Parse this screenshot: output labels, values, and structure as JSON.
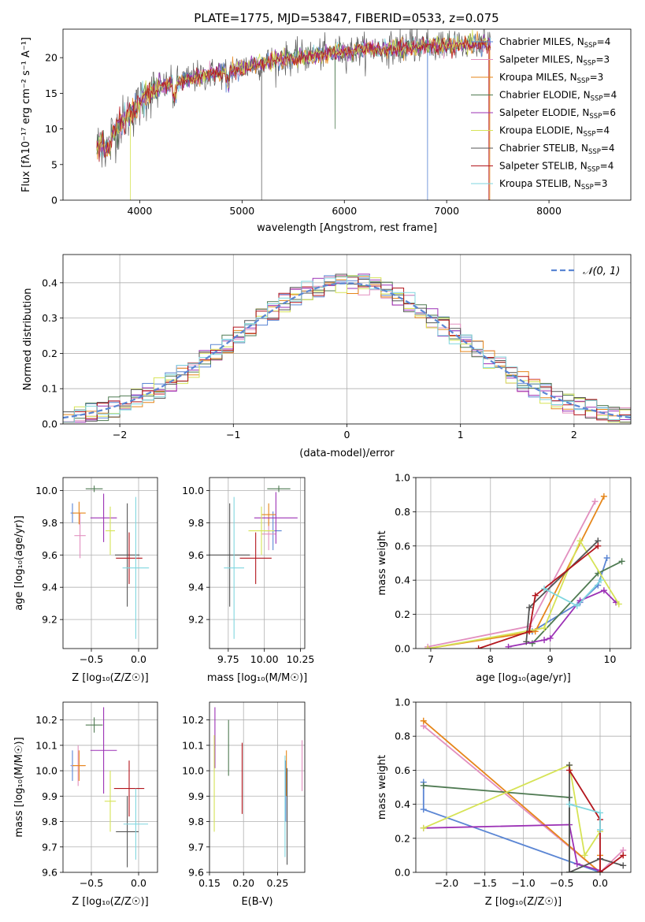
{
  "chart_data": [
    {
      "id": "spectrum",
      "type": "line",
      "title": "PLATE=1775, MJD=53847, FIBERID=0533, z=0.075",
      "xlabel": "wavelength [Angstrom, rest frame]",
      "ylabel": "Flux [fλ10⁻¹⁷ erg cm⁻² s⁻¹ A⁻¹]",
      "xlim": [
        3250,
        8800
      ],
      "ylim": [
        0,
        24
      ],
      "xticks": [
        4000,
        5000,
        6000,
        7000,
        8000
      ],
      "yticks": [
        0,
        5,
        10,
        15,
        20
      ],
      "grid": false,
      "legend_position": "top-right",
      "continuum": {
        "x": [
          3580,
          3650,
          3750,
          3850,
          3950,
          4050,
          4150,
          4250,
          4400,
          4600,
          4800,
          5000,
          5200,
          5400,
          5600,
          5800,
          6000,
          6200,
          6400,
          6600,
          6800,
          7000,
          7200,
          7400
        ],
        "y": [
          7.5,
          8.5,
          9.5,
          11.5,
          12.5,
          14.5,
          15.5,
          16.0,
          16.7,
          17.4,
          18.0,
          18.6,
          19.3,
          19.8,
          20.1,
          20.5,
          20.9,
          21.1,
          21.3,
          21.4,
          21.6,
          21.7,
          21.8,
          21.9
        ]
      },
      "series": [
        {
          "name": "Chabrier MILES, N",
          "sub": "SSP",
          "suffix": "=4",
          "color": "#5b86d4"
        },
        {
          "name": "Salpeter MILES, N",
          "sub": "SSP",
          "suffix": "=3",
          "color": "#e28fbf"
        },
        {
          "name": "Kroupa MILES, N",
          "sub": "SSP",
          "suffix": "=3",
          "color": "#e6861a"
        },
        {
          "name": "Chabrier ELODIE, N",
          "sub": "SSP",
          "suffix": "=4",
          "color": "#4f7a52"
        },
        {
          "name": "Salpeter ELODIE, N",
          "sub": "SSP",
          "suffix": "=6",
          "color": "#9b30b5"
        },
        {
          "name": "Kroupa ELODIE, N",
          "sub": "SSP",
          "suffix": "=4",
          "color": "#d6e356"
        },
        {
          "name": "Chabrier STELIB, N",
          "sub": "SSP",
          "suffix": "=4",
          "color": "#555555"
        },
        {
          "name": "Salpeter STELIB, N",
          "sub": "SSP",
          "suffix": "=4",
          "color": "#b3151c"
        },
        {
          "name": "Kroupa STELIB, N",
          "sub": "SSP",
          "suffix": "=3",
          "color": "#7fd6df"
        }
      ]
    },
    {
      "id": "residuals",
      "type": "line",
      "xlabel": "(data-model)/error",
      "ylabel": "Normed distribution",
      "xlim": [
        -2.5,
        2.5
      ],
      "ylim": [
        0,
        0.48
      ],
      "xticks": [
        -2,
        -1,
        0,
        1,
        2
      ],
      "yticks": [
        0.0,
        0.1,
        0.2,
        0.3,
        0.4
      ],
      "grid": true,
      "legend_position": "top-right",
      "gaussian_label": "𝒩(0, 1)",
      "gaussian_color": "#5b86d4",
      "bin_width": 0.1
    },
    {
      "id": "age-vs-Z",
      "type": "scatter",
      "xlabel": "Z [log₁₀(Z/Z☉)]",
      "ylabel": "age  [log₁₀(age/yr)]",
      "xlim": [
        -0.8,
        0.2
      ],
      "ylim": [
        9.02,
        10.08
      ],
      "xticks": [
        -0.5,
        0.0
      ],
      "yticks": [
        9.2,
        9.4,
        9.6,
        9.8,
        10.0
      ],
      "grid": true,
      "errorbars": [
        {
          "x": -0.7,
          "y": 9.86,
          "xerr": 0.02,
          "yerr": 0.06,
          "color": "#5b86d4"
        },
        {
          "x": -0.62,
          "y": 9.72,
          "xerr": 0.06,
          "yerr": 0.14,
          "color": "#e28fbf"
        },
        {
          "x": -0.63,
          "y": 9.86,
          "xerr": 0.07,
          "yerr": 0.07,
          "color": "#e6861a"
        },
        {
          "x": -0.47,
          "y": 10.01,
          "xerr": 0.09,
          "yerr": 0.02,
          "color": "#4f7a52"
        },
        {
          "x": -0.37,
          "y": 9.83,
          "xerr": 0.14,
          "yerr": 0.15,
          "color": "#9b30b5"
        },
        {
          "x": -0.3,
          "y": 9.75,
          "xerr": 0.05,
          "yerr": 0.15,
          "color": "#d6e356"
        },
        {
          "x": -0.12,
          "y": 9.6,
          "xerr": 0.13,
          "yerr": 0.32,
          "color": "#555555"
        },
        {
          "x": -0.1,
          "y": 9.58,
          "xerr": 0.14,
          "yerr": 0.16,
          "color": "#b3151c"
        },
        {
          "x": -0.03,
          "y": 9.52,
          "xerr": 0.14,
          "yerr": 0.44,
          "color": "#7fd6df"
        }
      ]
    },
    {
      "id": "age-vs-mass",
      "type": "scatter",
      "xlabel": "mass [log₁₀(M/M☉)]",
      "ylabel": "",
      "xlim": [
        9.62,
        10.28
      ],
      "ylim": [
        9.02,
        10.08
      ],
      "xticks": [
        9.75,
        10.0,
        10.25
      ],
      "yticks": [
        9.2,
        9.4,
        9.6,
        9.8,
        10.0
      ],
      "grid": true,
      "errorbars": [
        {
          "x": 10.06,
          "y": 9.75,
          "xerr": 0.06,
          "yerr": 0.12,
          "color": "#5b86d4"
        },
        {
          "x": 10.03,
          "y": 9.73,
          "xerr": 0.05,
          "yerr": 0.1,
          "color": "#e28fbf"
        },
        {
          "x": 10.03,
          "y": 9.85,
          "xerr": 0.05,
          "yerr": 0.07,
          "color": "#e6861a"
        },
        {
          "x": 10.1,
          "y": 10.01,
          "xerr": 0.08,
          "yerr": 0.02,
          "color": "#4f7a52"
        },
        {
          "x": 10.08,
          "y": 9.83,
          "xerr": 0.15,
          "yerr": 0.16,
          "color": "#9b30b5"
        },
        {
          "x": 9.98,
          "y": 9.75,
          "xerr": 0.09,
          "yerr": 0.15,
          "color": "#d6e356"
        },
        {
          "x": 9.76,
          "y": 9.6,
          "xerr": 0.14,
          "yerr": 0.32,
          "color": "#555555"
        },
        {
          "x": 9.94,
          "y": 9.58,
          "xerr": 0.11,
          "yerr": 0.16,
          "color": "#b3151c"
        },
        {
          "x": 9.79,
          "y": 9.52,
          "xerr": 0.07,
          "yerr": 0.44,
          "color": "#7fd6df"
        }
      ]
    },
    {
      "id": "weight-vs-age",
      "type": "line",
      "xlabel": "age  [log₁₀(age/yr)]",
      "ylabel": "mass weight",
      "xlim": [
        6.75,
        10.35
      ],
      "ylim": [
        0,
        1.0
      ],
      "xticks": [
        7,
        8,
        9,
        10
      ],
      "yticks": [
        0.0,
        0.2,
        0.4,
        0.6,
        0.8,
        1.0
      ],
      "grid": true,
      "series": [
        {
          "color": "#5b86d4",
          "x": [
            8.7,
            9.5,
            9.8,
            9.95
          ],
          "y": [
            0.1,
            0.27,
            0.37,
            0.53
          ]
        },
        {
          "color": "#e28fbf",
          "x": [
            6.95,
            8.65,
            9.75
          ],
          "y": [
            0.01,
            0.13,
            0.86
          ]
        },
        {
          "color": "#e6861a",
          "x": [
            6.95,
            8.75,
            9.9
          ],
          "y": [
            0.0,
            0.1,
            0.89
          ]
        },
        {
          "color": "#4f7a52",
          "x": [
            8.7,
            9.8,
            10.2
          ],
          "y": [
            0.03,
            0.44,
            0.51
          ]
        },
        {
          "color": "#9b30b5",
          "x": [
            8.3,
            8.9,
            9.0,
            9.5,
            9.9,
            10.1
          ],
          "y": [
            0.01,
            0.05,
            0.06,
            0.28,
            0.34,
            0.27
          ]
        },
        {
          "color": "#d6e356",
          "x": [
            6.95,
            8.9,
            9.5,
            10.15
          ],
          "y": [
            0.0,
            0.12,
            0.63,
            0.26
          ]
        },
        {
          "color": "#555555",
          "x": [
            8.6,
            8.65,
            9.8
          ],
          "y": [
            0.04,
            0.24,
            0.63
          ]
        },
        {
          "color": "#b3151c",
          "x": [
            7.8,
            8.65,
            8.75,
            9.8
          ],
          "y": [
            0.0,
            0.1,
            0.31,
            0.6
          ]
        },
        {
          "color": "#7fd6df",
          "x": [
            8.9,
            9.45,
            9.85
          ],
          "y": [
            0.35,
            0.25,
            0.4
          ]
        }
      ]
    },
    {
      "id": "mass-vs-Z",
      "type": "scatter",
      "xlabel": "Z [log₁₀(Z/Z☉)]",
      "ylabel": "mass [log₁₀(M/M☉)]",
      "xlim": [
        -0.8,
        0.2
      ],
      "ylim": [
        9.6,
        10.27
      ],
      "xticks": [
        -0.5,
        0.0
      ],
      "yticks": [
        9.6,
        9.7,
        9.8,
        9.9,
        10.0,
        10.1,
        10.2
      ],
      "grid": true,
      "errorbars": [
        {
          "x": -0.7,
          "y": 10.02,
          "xerr": 0.02,
          "yerr": 0.06,
          "color": "#5b86d4"
        },
        {
          "x": -0.64,
          "y": 10.02,
          "xerr": 0.07,
          "yerr": 0.08,
          "color": "#e28fbf"
        },
        {
          "x": -0.63,
          "y": 10.02,
          "xerr": 0.07,
          "yerr": 0.06,
          "color": "#e6861a"
        },
        {
          "x": -0.47,
          "y": 10.18,
          "xerr": 0.09,
          "yerr": 0.03,
          "color": "#4f7a52"
        },
        {
          "x": -0.37,
          "y": 10.08,
          "xerr": 0.14,
          "yerr": 0.17,
          "color": "#9b30b5"
        },
        {
          "x": -0.3,
          "y": 9.88,
          "xerr": 0.06,
          "yerr": 0.12,
          "color": "#d6e356"
        },
        {
          "x": -0.12,
          "y": 9.76,
          "xerr": 0.12,
          "yerr": 0.14,
          "color": "#555555"
        },
        {
          "x": -0.1,
          "y": 9.93,
          "xerr": 0.16,
          "yerr": 0.11,
          "color": "#b3151c"
        },
        {
          "x": -0.03,
          "y": 9.79,
          "xerr": 0.13,
          "yerr": 0.14,
          "color": "#7fd6df"
        }
      ]
    },
    {
      "id": "mass-vs-ebv",
      "type": "scatter",
      "xlabel": "E(B-V)",
      "ylabel": "",
      "xlim": [
        0.15,
        0.29
      ],
      "ylim": [
        9.6,
        10.27
      ],
      "xticks": [
        0.15,
        0.2,
        0.25
      ],
      "yticks": [
        9.6,
        9.7,
        9.8,
        9.9,
        10.0,
        10.1,
        10.2
      ],
      "grid": true,
      "errorbars": [
        {
          "x": 0.262,
          "y": 9.92,
          "xerr": 0,
          "yerr": 0.12,
          "color": "#5b86d4"
        },
        {
          "x": 0.286,
          "y": 10.02,
          "xerr": 0,
          "yerr": 0.1,
          "color": "#e28fbf"
        },
        {
          "x": 0.263,
          "y": 9.99,
          "xerr": 0,
          "yerr": 0.09,
          "color": "#e6861a"
        },
        {
          "x": 0.178,
          "y": 10.09,
          "xerr": 0,
          "yerr": 0.11,
          "color": "#4f7a52"
        },
        {
          "x": 0.158,
          "y": 10.13,
          "xerr": 0,
          "yerr": 0.12,
          "color": "#9b30b5"
        },
        {
          "x": 0.157,
          "y": 9.95,
          "xerr": 0,
          "yerr": 0.19,
          "color": "#d6e356"
        },
        {
          "x": 0.264,
          "y": 9.82,
          "xerr": 0,
          "yerr": 0.19,
          "color": "#555555"
        },
        {
          "x": 0.198,
          "y": 9.97,
          "xerr": 0,
          "yerr": 0.14,
          "color": "#b3151c"
        },
        {
          "x": 0.261,
          "y": 9.86,
          "xerr": 0,
          "yerr": 0.2,
          "color": "#7fd6df"
        }
      ]
    },
    {
      "id": "weight-vs-Z",
      "type": "line",
      "xlabel": "Z [log₁₀(Z/Z☉)]",
      "ylabel": "mass weight",
      "xlim": [
        -2.4,
        0.4
      ],
      "ylim": [
        0,
        1.0
      ],
      "xticks": [
        -2.0,
        -1.5,
        -1.0,
        -0.5,
        0.0
      ],
      "yticks": [
        0.0,
        0.2,
        0.4,
        0.6,
        0.8,
        1.0
      ],
      "grid": true,
      "series": [
        {
          "color": "#5b86d4",
          "x": [
            -2.3,
            -2.3,
            0.0,
            0.0
          ],
          "y": [
            0.53,
            0.37,
            0.0,
            0.0
          ]
        },
        {
          "color": "#e28fbf",
          "x": [
            -2.3,
            0.0,
            0.3
          ],
          "y": [
            0.86,
            0.0,
            0.13
          ]
        },
        {
          "color": "#e6861a",
          "x": [
            -2.3,
            0.0,
            0.0
          ],
          "y": [
            0.89,
            0.0,
            0.1
          ]
        },
        {
          "color": "#4f7a52",
          "x": [
            -2.3,
            -0.4,
            -0.4,
            0.0
          ],
          "y": [
            0.51,
            0.44,
            0.0,
            0.0
          ]
        },
        {
          "color": "#9b30b5",
          "x": [
            -2.3,
            -0.4,
            -0.3,
            0.0
          ],
          "y": [
            0.26,
            0.28,
            0.05,
            0.01
          ]
        },
        {
          "color": "#d6e356",
          "x": [
            -2.3,
            -0.4,
            -0.2,
            0.0
          ],
          "y": [
            0.26,
            0.63,
            0.1,
            0.24
          ]
        },
        {
          "color": "#555555",
          "x": [
            -0.4,
            -0.4,
            0.0,
            0.3
          ],
          "y": [
            0.63,
            0.0,
            0.08,
            0.04
          ]
        },
        {
          "color": "#b3151c",
          "x": [
            -0.4,
            0.0,
            0.0,
            0.3
          ],
          "y": [
            0.6,
            0.31,
            0.0,
            0.1
          ]
        },
        {
          "color": "#7fd6df",
          "x": [
            -0.4,
            0.0,
            0.0
          ],
          "y": [
            0.4,
            0.35,
            0.25
          ]
        }
      ]
    }
  ]
}
